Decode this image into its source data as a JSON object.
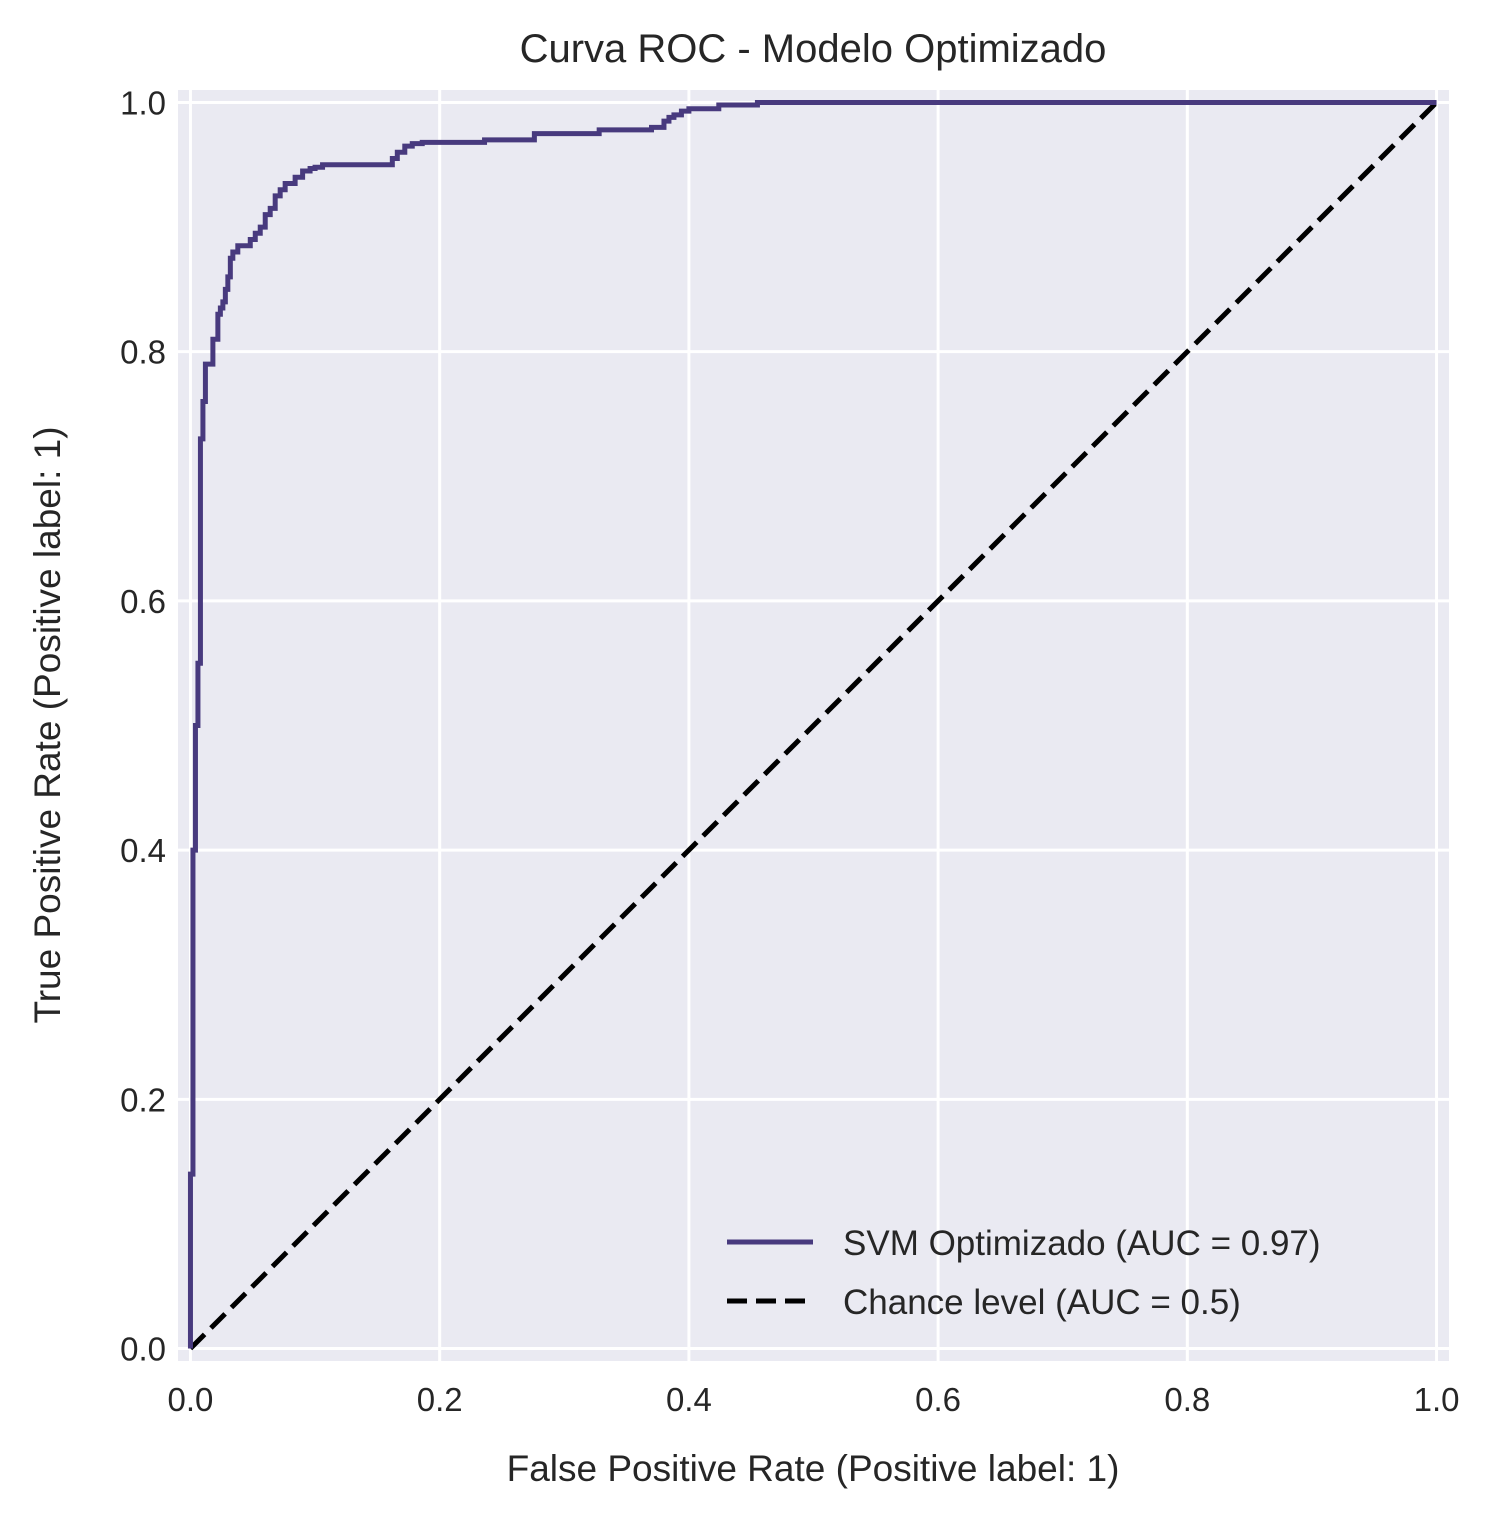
{
  "chart_data": {
    "type": "line",
    "title": "Curva ROC - Modelo Optimizado",
    "xlabel": "False Positive Rate (Positive label: 1)",
    "ylabel": "True Positive Rate (Positive label: 1)",
    "xlim": [
      -0.01,
      1.01
    ],
    "ylim": [
      -0.01,
      1.01
    ],
    "xticks": [
      0.0,
      0.2,
      0.4,
      0.6,
      0.8,
      1.0
    ],
    "yticks": [
      0.0,
      0.2,
      0.4,
      0.6,
      0.8,
      1.0
    ],
    "xtick_labels": [
      "0.0",
      "0.2",
      "0.4",
      "0.6",
      "0.8",
      "1.0"
    ],
    "ytick_labels": [
      "0.0",
      "0.2",
      "0.4",
      "0.6",
      "0.8",
      "1.0"
    ],
    "grid": true,
    "background": "#eaeaf2",
    "legend_position": "lower-right",
    "series": [
      {
        "name": "SVM Optimizado (AUC = 0.97)",
        "color": "#483a7e",
        "style": "solid",
        "x": [
          0.0,
          0.0,
          0.002,
          0.002,
          0.004,
          0.004,
          0.006,
          0.006,
          0.008,
          0.008,
          0.01,
          0.01,
          0.012,
          0.012,
          0.014,
          0.014,
          0.018,
          0.018,
          0.022,
          0.022,
          0.024,
          0.024,
          0.026,
          0.026,
          0.028,
          0.028,
          0.03,
          0.03,
          0.032,
          0.032,
          0.034,
          0.034,
          0.038,
          0.038,
          0.042,
          0.042,
          0.048,
          0.048,
          0.052,
          0.052,
          0.056,
          0.056,
          0.06,
          0.06,
          0.064,
          0.064,
          0.068,
          0.068,
          0.072,
          0.072,
          0.076,
          0.076,
          0.084,
          0.084,
          0.09,
          0.09,
          0.096,
          0.096,
          0.1,
          0.1,
          0.106,
          0.106,
          0.114,
          0.114,
          0.162,
          0.162,
          0.166,
          0.166,
          0.172,
          0.172,
          0.178,
          0.178,
          0.186,
          0.186,
          0.236,
          0.236,
          0.276,
          0.276,
          0.328,
          0.328,
          0.37,
          0.37,
          0.38,
          0.38,
          0.384,
          0.384,
          0.388,
          0.388,
          0.394,
          0.394,
          0.4,
          0.4,
          0.424,
          0.424,
          0.455,
          0.455,
          1.0
        ],
        "y": [
          0.0,
          0.14,
          0.14,
          0.4,
          0.4,
          0.5,
          0.5,
          0.55,
          0.55,
          0.73,
          0.73,
          0.76,
          0.76,
          0.79,
          0.79,
          0.79,
          0.79,
          0.81,
          0.81,
          0.83,
          0.83,
          0.835,
          0.835,
          0.84,
          0.84,
          0.85,
          0.85,
          0.86,
          0.86,
          0.875,
          0.875,
          0.88,
          0.88,
          0.885,
          0.885,
          0.885,
          0.885,
          0.89,
          0.89,
          0.895,
          0.895,
          0.9,
          0.9,
          0.91,
          0.91,
          0.915,
          0.915,
          0.925,
          0.925,
          0.93,
          0.93,
          0.935,
          0.935,
          0.94,
          0.94,
          0.945,
          0.945,
          0.947,
          0.947,
          0.948,
          0.948,
          0.95,
          0.95,
          0.95,
          0.95,
          0.955,
          0.955,
          0.96,
          0.96,
          0.965,
          0.965,
          0.967,
          0.967,
          0.968,
          0.968,
          0.97,
          0.97,
          0.975,
          0.975,
          0.978,
          0.978,
          0.98,
          0.98,
          0.985,
          0.985,
          0.988,
          0.988,
          0.99,
          0.99,
          0.993,
          0.993,
          0.995,
          0.995,
          0.998,
          0.998,
          1.0,
          1.0
        ]
      },
      {
        "name": "Chance level (AUC = 0.5)",
        "color": "#000000",
        "style": "dashed",
        "x": [
          0.0,
          1.0
        ],
        "y": [
          0.0,
          1.0
        ]
      }
    ]
  }
}
